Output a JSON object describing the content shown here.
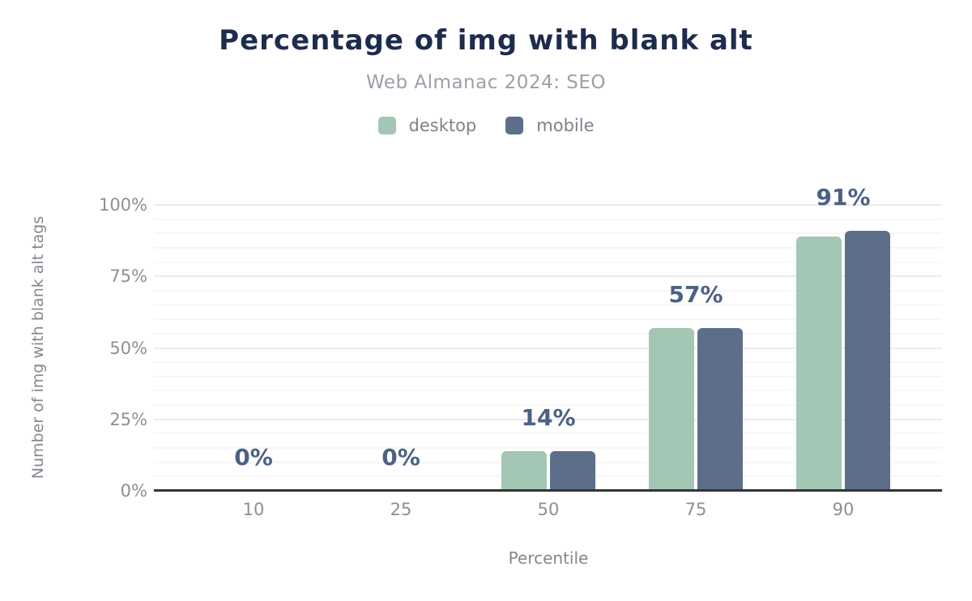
{
  "chart_data": {
    "type": "bar",
    "title": "Percentage of img with blank alt",
    "subtitle": "Web Almanac 2024: SEO",
    "categories": [
      "10",
      "25",
      "50",
      "75",
      "90"
    ],
    "series": [
      {
        "name": "desktop",
        "color": "#a3c7b4",
        "values": [
          0,
          0,
          14,
          57,
          89
        ]
      },
      {
        "name": "mobile",
        "color": "#5d6e8a",
        "values": [
          0,
          0,
          14,
          57,
          91
        ]
      }
    ],
    "data_labels": [
      "0%",
      "0%",
      "14%",
      "57%",
      "91%"
    ],
    "xlabel": "Percentile",
    "ylabel": "Number of img with blank alt tags",
    "y_ticks": [
      "0%",
      "25%",
      "50%",
      "75%",
      "100%"
    ],
    "ylim": [
      0,
      100
    ],
    "grid": {
      "minor_step": 5,
      "major_step": 25,
      "grid_on": true
    },
    "legend_position": "top"
  },
  "colors": {
    "title": "#1d2c4d",
    "subtitle": "#9aa0a8",
    "data_label": "#4b6185",
    "tick_text": "#8c9095",
    "axis_title_text": "#84888f",
    "axis_line": "#323437",
    "grid_minor": "#f6f6f7",
    "grid_major": "#eaebec",
    "background": "#ffffff"
  }
}
